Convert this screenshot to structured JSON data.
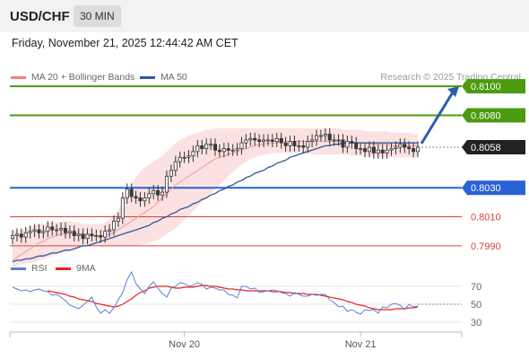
{
  "header": {
    "pair": "USD/CHF",
    "timeframe": "30 MIN"
  },
  "datetime": "Friday, November 21, 2025 12:44:42 AM CET",
  "legend_main": [
    {
      "label": "MA 20 + Bollinger Bands",
      "color": "#f08080"
    },
    {
      "label": "MA 50",
      "color": "#2e5a9c"
    }
  ],
  "copyright": "Research © 2025 Trading Central",
  "legend_rsi": [
    {
      "label": "RSI",
      "color": "#5b7fd6"
    },
    {
      "label": "9MA",
      "color": "#e8261c"
    }
  ],
  "chart_data": [
    {
      "type": "candlestick",
      "name": "price",
      "ylim": [
        0.798,
        0.811
      ],
      "levels": [
        {
          "value": 0.81,
          "label": "0.8100",
          "color": "#4c9a0e",
          "style": "tag"
        },
        {
          "value": 0.808,
          "label": "0.8080",
          "color": "#4c9a0e",
          "style": "tag"
        },
        {
          "value": 0.8058,
          "label": "0.8058",
          "color": "#222222",
          "style": "current"
        },
        {
          "value": 0.803,
          "label": "0.8030",
          "color": "#2a62d6",
          "style": "tag"
        },
        {
          "value": 0.801,
          "label": "0.8010",
          "color": "#d94040",
          "style": "text"
        },
        {
          "value": 0.799,
          "label": "0.7990",
          "color": "#d94040",
          "style": "text"
        }
      ],
      "close": [
        0.7997,
        0.7998,
        0.7996,
        0.7999,
        0.8,
        0.8001,
        0.7999,
        0.8,
        0.8003,
        0.8001,
        0.8001,
        0.8002,
        0.7999,
        0.8,
        0.7997,
        0.7998,
        0.7995,
        0.7998,
        0.7997,
        0.7997,
        0.7996,
        0.8,
        0.8001,
        0.8007,
        0.8009,
        0.8023,
        0.8029,
        0.8024,
        0.8023,
        0.8021,
        0.8023,
        0.8026,
        0.8028,
        0.8025,
        0.8027,
        0.8038,
        0.8042,
        0.8048,
        0.8051,
        0.8051,
        0.8052,
        0.8055,
        0.8059,
        0.8057,
        0.806,
        0.806,
        0.8056,
        0.8055,
        0.8057,
        0.8056,
        0.8056,
        0.8057,
        0.8061,
        0.8063,
        0.8064,
        0.8063,
        0.8062,
        0.8063,
        0.8063,
        0.8062,
        0.8064,
        0.8061,
        0.8059,
        0.8062,
        0.8059,
        0.8059,
        0.8058,
        0.8062,
        0.8063,
        0.8066,
        0.8066,
        0.8067,
        0.8063,
        0.8063,
        0.8063,
        0.8058,
        0.8062,
        0.8061,
        0.8057,
        0.8057,
        0.8055,
        0.8058,
        0.8054,
        0.8056,
        0.8054,
        0.8056,
        0.8057,
        0.8058,
        0.806,
        0.8058,
        0.8057,
        0.8055,
        0.8058
      ],
      "ma20": [
        0.798,
        0.7982,
        0.7984,
        0.7986,
        0.7988,
        0.799,
        0.7992,
        0.7993,
        0.7995,
        0.7996,
        0.7997,
        0.7998,
        0.7998,
        0.7999,
        0.7998,
        0.7998,
        0.7998,
        0.7997,
        0.7997,
        0.7997,
        0.7997,
        0.7997,
        0.7998,
        0.7999,
        0.8001,
        0.8003,
        0.8005,
        0.8007,
        0.8009,
        0.8011,
        0.8013,
        0.8015,
        0.8017,
        0.802,
        0.8023,
        0.8026,
        0.8029,
        0.8032,
        0.8034,
        0.8036,
        0.8038,
        0.804,
        0.8042,
        0.8044,
        0.8046,
        0.8048,
        0.805,
        0.8051,
        0.8052,
        0.8053,
        0.8054,
        0.8055,
        0.8056,
        0.8057,
        0.8058,
        0.8059,
        0.806,
        0.806,
        0.8061,
        0.8061,
        0.8061,
        0.8062,
        0.8062,
        0.8062,
        0.8062,
        0.8062,
        0.8062,
        0.8062,
        0.8062,
        0.8062,
        0.8062,
        0.8062,
        0.8062,
        0.8062,
        0.8062,
        0.8062,
        0.8061,
        0.8061,
        0.8061,
        0.8061,
        0.8061,
        0.806,
        0.806,
        0.806,
        0.806,
        0.806,
        0.8059,
        0.8059,
        0.8059,
        0.8059,
        0.8059,
        0.8059,
        0.8059
      ],
      "bb_upper": [
        0.8,
        0.8001,
        0.8001,
        0.8002,
        0.8003,
        0.8004,
        0.8005,
        0.8005,
        0.8006,
        0.8006,
        0.8006,
        0.8007,
        0.8007,
        0.8007,
        0.8006,
        0.8006,
        0.8005,
        0.8005,
        0.8005,
        0.8005,
        0.8005,
        0.8006,
        0.8008,
        0.8011,
        0.8015,
        0.8021,
        0.8027,
        0.8033,
        0.8037,
        0.8041,
        0.8044,
        0.8046,
        0.8048,
        0.805,
        0.8052,
        0.8055,
        0.8058,
        0.8061,
        0.8063,
        0.8064,
        0.8066,
        0.8067,
        0.8068,
        0.8069,
        0.807,
        0.807,
        0.8071,
        0.8071,
        0.8071,
        0.8071,
        0.8071,
        0.8071,
        0.8071,
        0.8071,
        0.8071,
        0.8071,
        0.8071,
        0.8071,
        0.8071,
        0.8071,
        0.8071,
        0.8071,
        0.8071,
        0.8071,
        0.8071,
        0.8071,
        0.8071,
        0.8071,
        0.8071,
        0.8071,
        0.8071,
        0.8071,
        0.8071,
        0.8071,
        0.8071,
        0.807,
        0.807,
        0.807,
        0.807,
        0.807,
        0.8069,
        0.8069,
        0.8069,
        0.8069,
        0.8069,
        0.8069,
        0.8068,
        0.8068,
        0.8068,
        0.8068,
        0.8068,
        0.8067,
        0.8067
      ],
      "bb_lower": [
        0.7976,
        0.7976,
        0.7977,
        0.7978,
        0.7978,
        0.7979,
        0.798,
        0.7981,
        0.7982,
        0.7983,
        0.7984,
        0.7985,
        0.7986,
        0.7987,
        0.7988,
        0.7989,
        0.799,
        0.799,
        0.799,
        0.799,
        0.799,
        0.799,
        0.799,
        0.799,
        0.799,
        0.799,
        0.799,
        0.799,
        0.799,
        0.7991,
        0.7991,
        0.7992,
        0.7993,
        0.7994,
        0.7996,
        0.7998,
        0.8,
        0.8002,
        0.8005,
        0.8008,
        0.8011,
        0.8014,
        0.8017,
        0.802,
        0.8023,
        0.8026,
        0.8029,
        0.8032,
        0.8035,
        0.8038,
        0.8041,
        0.8044,
        0.8046,
        0.8048,
        0.805,
        0.8051,
        0.8052,
        0.8053,
        0.8053,
        0.8054,
        0.8054,
        0.8054,
        0.8054,
        0.8054,
        0.8054,
        0.8054,
        0.8054,
        0.8054,
        0.8053,
        0.8053,
        0.8053,
        0.8053,
        0.8053,
        0.8053,
        0.8053,
        0.8053,
        0.8053,
        0.8052,
        0.8052,
        0.8052,
        0.8052,
        0.8052,
        0.8052,
        0.8051,
        0.8051,
        0.8051,
        0.8051,
        0.8051,
        0.8051,
        0.8051,
        0.8051,
        0.8051,
        0.8051
      ],
      "ma50": [
        0.7979,
        0.798,
        0.798,
        0.7981,
        0.7981,
        0.7982,
        0.7983,
        0.7983,
        0.7984,
        0.7985,
        0.7985,
        0.7986,
        0.7987,
        0.7987,
        0.7988,
        0.7989,
        0.799,
        0.799,
        0.7991,
        0.7992,
        0.7993,
        0.7994,
        0.7995,
        0.7996,
        0.7997,
        0.7998,
        0.7999,
        0.8,
        0.8001,
        0.8002,
        0.8003,
        0.8004,
        0.8006,
        0.8007,
        0.8009,
        0.801,
        0.8012,
        0.8013,
        0.8015,
        0.8016,
        0.8017,
        0.8019,
        0.802,
        0.8022,
        0.8023,
        0.8025,
        0.8026,
        0.8028,
        0.8029,
        0.8031,
        0.8032,
        0.8034,
        0.8035,
        0.8037,
        0.8038,
        0.804,
        0.8041,
        0.8042,
        0.8044,
        0.8045,
        0.8047,
        0.8048,
        0.8049,
        0.8051,
        0.8052,
        0.8053,
        0.8054,
        0.8055,
        0.8056,
        0.8057,
        0.8058,
        0.8059,
        0.8059,
        0.806,
        0.806,
        0.8061,
        0.8061,
        0.8061,
        0.8061,
        0.8061,
        0.8061,
        0.8061,
        0.8061,
        0.8061,
        0.8061,
        0.8061,
        0.8061,
        0.8061,
        0.8061,
        0.8061,
        0.8061,
        0.8061,
        0.8061
      ],
      "projection": {
        "from": 0.8058,
        "to": 0.81
      }
    },
    {
      "type": "line",
      "name": "rsi",
      "ylim": [
        25,
        85
      ],
      "yticks": [
        70,
        50,
        30
      ],
      "series": [
        {
          "name": "RSI",
          "color": "#5b7fd6",
          "values": [
            69,
            67,
            65,
            66,
            64,
            66,
            67,
            65,
            64,
            60,
            61,
            58,
            54,
            49,
            47,
            45,
            49,
            53,
            58,
            47,
            40,
            44,
            40,
            46,
            55,
            63,
            77,
            86,
            73,
            67,
            62,
            70,
            75,
            68,
            62,
            58,
            68,
            70,
            74,
            73,
            70,
            71,
            74,
            72,
            67,
            69,
            68,
            66,
            66,
            61,
            60,
            57,
            70,
            70,
            67,
            68,
            63,
            64,
            65,
            66,
            65,
            63,
            62,
            59,
            63,
            61,
            59,
            59,
            61,
            60,
            61,
            61,
            55,
            52,
            47,
            48,
            42,
            44,
            41,
            39,
            44,
            43,
            44,
            40,
            47,
            46,
            50,
            51,
            49,
            44,
            50,
            47,
            48
          ]
        },
        {
          "name": "9MA",
          "color": "#e8261c",
          "values": [
            null,
            null,
            null,
            null,
            null,
            null,
            null,
            null,
            65,
            64,
            63,
            62,
            61,
            59,
            58,
            56,
            55,
            54,
            53,
            51,
            50,
            49,
            48,
            47,
            48,
            50,
            53,
            56,
            60,
            63,
            65,
            68,
            69,
            70,
            70,
            70,
            69,
            68,
            68,
            69,
            69,
            69,
            70,
            71,
            71,
            70,
            70,
            69,
            68,
            67,
            67,
            66,
            66,
            65,
            65,
            65,
            65,
            65,
            65,
            64,
            64,
            64,
            63,
            63,
            62,
            62,
            62,
            61,
            61,
            61,
            60,
            59,
            58,
            57,
            56,
            55,
            53,
            52,
            50,
            49,
            48,
            46,
            45,
            44,
            44,
            44,
            44,
            45,
            45,
            45,
            46,
            46,
            47
          ]
        }
      ]
    }
  ],
  "xaxis": {
    "labels": [
      {
        "text": "Nov 20",
        "index": 39
      },
      {
        "text": "Nov 21",
        "index": 79
      }
    ]
  }
}
